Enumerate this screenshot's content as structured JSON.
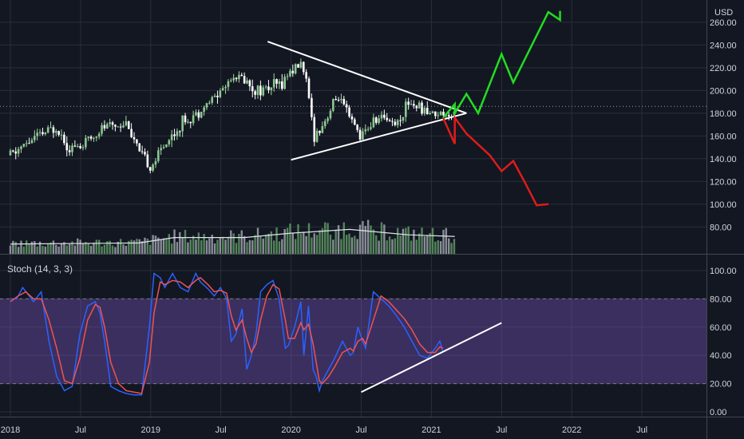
{
  "chart_data": [
    {
      "type": "candlestick",
      "currency_label": "USD",
      "y_ticks": [
        80,
        100,
        120,
        140,
        160,
        180,
        200,
        220,
        240,
        260
      ],
      "y_tick_labels": [
        "80.00",
        "100.00",
        "120.00",
        "140.00",
        "160.00",
        "180.00",
        "200.00",
        "220.00",
        "240.00",
        "260.00"
      ],
      "ylim": [
        70,
        280
      ],
      "last_price": 186,
      "x_ticks": [
        "2018-01",
        "2018-07",
        "2019-01",
        "2019-07",
        "2020-01",
        "2020-07",
        "2021-01",
        "2021-07",
        "2022-01",
        "2022-07"
      ],
      "x_tick_labels": [
        "2018",
        "Jul",
        "2019",
        "Jul",
        "2020",
        "Jul",
        "2021",
        "Jul",
        "2022",
        "Jul"
      ],
      "price_path": [
        [
          "2018-01",
          143
        ],
        [
          "2018-03",
          158
        ],
        [
          "2018-05",
          168
        ],
        [
          "2018-06",
          150
        ],
        [
          "2018-07",
          150
        ],
        [
          "2018-09",
          168
        ],
        [
          "2018-11",
          172
        ],
        [
          "2018-12",
          145
        ],
        [
          "2019-01",
          132
        ],
        [
          "2019-02",
          150
        ],
        [
          "2019-04",
          175
        ],
        [
          "2019-05",
          180
        ],
        [
          "2019-07",
          200
        ],
        [
          "2019-08",
          213
        ],
        [
          "2019-09",
          210
        ],
        [
          "2019-10",
          200
        ],
        [
          "2019-12",
          205
        ],
        [
          "2020-01",
          218
        ],
        [
          "2020-02",
          225
        ],
        [
          "2020-03",
          160
        ],
        [
          "2020-04",
          175
        ],
        [
          "2020-05",
          195
        ],
        [
          "2020-06",
          175
        ],
        [
          "2020-07",
          160
        ],
        [
          "2020-08",
          172
        ],
        [
          "2020-09",
          178
        ],
        [
          "2020-10",
          170
        ],
        [
          "2020-11",
          190
        ],
        [
          "2020-12",
          185
        ],
        [
          "2021-01",
          180
        ],
        [
          "2021-03",
          180
        ]
      ],
      "volume": {
        "ma_path": [
          [
            "2018-01",
            0.18
          ],
          [
            "2018-12",
            0.2
          ],
          [
            "2019-03",
            0.3
          ],
          [
            "2019-09",
            0.3
          ],
          [
            "2020-01",
            0.38
          ],
          [
            "2020-06",
            0.45
          ],
          [
            "2020-11",
            0.35
          ],
          [
            "2021-03",
            0.32
          ]
        ]
      },
      "annotations": {
        "triangle_upper": [
          [
            "2019-11",
            243
          ],
          [
            "2021-04",
            180
          ]
        ],
        "triangle_lower": [
          [
            "2020-01",
            139
          ],
          [
            "2021-04",
            180
          ]
        ],
        "bullish_projection": [
          [
            "2021-02",
            176
          ],
          [
            "2021-03",
            188
          ],
          [
            "2021-03",
            180
          ],
          [
            "2021-04",
            197
          ],
          [
            "2021-05",
            180
          ],
          [
            "2021-07",
            232
          ],
          [
            "2021-08",
            207
          ],
          [
            "2021-11",
            269
          ],
          [
            "2021-12",
            262
          ],
          [
            "2021-12",
            270
          ]
        ],
        "bearish_projection": [
          [
            "2021-02",
            176
          ],
          [
            "2021-03",
            153
          ],
          [
            "2021-03",
            176
          ],
          [
            "2021-04",
            162
          ],
          [
            "2021-06",
            143
          ],
          [
            "2021-07",
            129
          ],
          [
            "2021-08",
            138
          ],
          [
            "2021-09",
            119
          ],
          [
            "2021-10",
            99
          ],
          [
            "2021-11",
            100
          ]
        ]
      }
    },
    {
      "type": "line",
      "title": "Stoch (14, 3, 3)",
      "ylim": [
        -5,
        105
      ],
      "y_ticks": [
        0,
        20,
        40,
        60,
        80,
        100
      ],
      "y_tick_labels": [
        "0.00",
        "20.00",
        "40.00",
        "60.00",
        "80.00",
        "100.00"
      ],
      "band": [
        20,
        80
      ],
      "series": [
        {
          "color": "#2962ff",
          "values": [
            [
              0,
              80
            ],
            [
              0.4,
              80
            ],
            [
              0.8,
              88
            ],
            [
              1.5,
              78
            ],
            [
              2.0,
              85
            ],
            [
              2.5,
              50
            ],
            [
              3.0,
              25
            ],
            [
              3.5,
              15
            ],
            [
              4.0,
              18
            ],
            [
              4.5,
              55
            ],
            [
              5.0,
              75
            ],
            [
              5.5,
              78
            ],
            [
              5.8,
              70
            ],
            [
              6.1,
              50
            ],
            [
              6.5,
              18
            ],
            [
              7.0,
              15
            ],
            [
              7.5,
              13
            ],
            [
              8.0,
              12
            ],
            [
              8.5,
              12
            ],
            [
              9.0,
              60
            ],
            [
              9.3,
              98
            ],
            [
              9.7,
              95
            ],
            [
              10.0,
              88
            ],
            [
              10.5,
              98
            ],
            [
              11.0,
              88
            ],
            [
              11.5,
              85
            ],
            [
              12.0,
              98
            ],
            [
              12.3,
              92
            ],
            [
              12.8,
              87
            ],
            [
              13.2,
              82
            ],
            [
              13.6,
              88
            ],
            [
              14.0,
              80
            ],
            [
              14.3,
              50
            ],
            [
              14.6,
              55
            ],
            [
              15.0,
              73
            ],
            [
              15.3,
              30
            ],
            [
              15.6,
              40
            ],
            [
              15.9,
              55
            ],
            [
              16.2,
              85
            ],
            [
              16.6,
              90
            ],
            [
              17.0,
              93
            ],
            [
              17.4,
              80
            ],
            [
              17.8,
              45
            ],
            [
              18.0,
              47
            ],
            [
              18.4,
              60
            ],
            [
              18.8,
              78
            ],
            [
              19.0,
              40
            ],
            [
              19.3,
              75
            ],
            [
              19.6,
              30
            ],
            [
              19.8,
              25
            ],
            [
              20.0,
              15
            ],
            [
              20.2,
              22
            ],
            [
              20.6,
              30
            ],
            [
              21.0,
              38
            ],
            [
              21.5,
              50
            ],
            [
              22.0,
              40
            ],
            [
              22.2,
              42
            ],
            [
              22.5,
              60
            ],
            [
              22.8,
              50
            ],
            [
              23.0,
              45
            ],
            [
              23.5,
              85
            ],
            [
              24.0,
              80
            ],
            [
              24.5,
              75
            ],
            [
              25.0,
              68
            ],
            [
              25.5,
              60
            ],
            [
              26.0,
              50
            ],
            [
              26.5,
              40
            ],
            [
              27.0,
              38
            ],
            [
              27.5,
              45
            ],
            [
              27.8,
              50
            ],
            [
              28.0,
              43
            ]
          ]
        },
        {
          "color": "#ef5350",
          "values": [
            [
              0,
              78
            ],
            [
              0.5,
              82
            ],
            [
              1.0,
              85
            ],
            [
              1.5,
              80
            ],
            [
              2.0,
              80
            ],
            [
              2.5,
              65
            ],
            [
              3.0,
              45
            ],
            [
              3.5,
              22
            ],
            [
              4.0,
              20
            ],
            [
              4.5,
              38
            ],
            [
              5.0,
              65
            ],
            [
              5.5,
              76
            ],
            [
              5.8,
              74
            ],
            [
              6.1,
              60
            ],
            [
              6.5,
              35
            ],
            [
              7.0,
              20
            ],
            [
              7.5,
              15
            ],
            [
              8.0,
              14
            ],
            [
              8.5,
              13
            ],
            [
              9.0,
              35
            ],
            [
              9.3,
              70
            ],
            [
              9.7,
              92
            ],
            [
              10.0,
              90
            ],
            [
              10.5,
              93
            ],
            [
              11.0,
              92
            ],
            [
              11.5,
              88
            ],
            [
              12.0,
              93
            ],
            [
              12.3,
              95
            ],
            [
              12.8,
              90
            ],
            [
              13.2,
              85
            ],
            [
              13.6,
              86
            ],
            [
              14.0,
              84
            ],
            [
              14.3,
              68
            ],
            [
              14.6,
              58
            ],
            [
              15.0,
              65
            ],
            [
              15.3,
              52
            ],
            [
              15.6,
              42
            ],
            [
              15.9,
              48
            ],
            [
              16.2,
              65
            ],
            [
              16.6,
              82
            ],
            [
              17.0,
              90
            ],
            [
              17.4,
              87
            ],
            [
              17.8,
              65
            ],
            [
              18.0,
              52
            ],
            [
              18.4,
              52
            ],
            [
              18.8,
              63
            ],
            [
              19.0,
              58
            ],
            [
              19.3,
              62
            ],
            [
              19.6,
              48
            ],
            [
              19.8,
              35
            ],
            [
              20.0,
              22
            ],
            [
              20.2,
              20
            ],
            [
              20.6,
              25
            ],
            [
              21.0,
              32
            ],
            [
              21.5,
              42
            ],
            [
              22.0,
              45
            ],
            [
              22.2,
              43
            ],
            [
              22.5,
              50
            ],
            [
              22.8,
              52
            ],
            [
              23.0,
              48
            ],
            [
              23.5,
              65
            ],
            [
              24.0,
              82
            ],
            [
              24.5,
              78
            ],
            [
              25.0,
              72
            ],
            [
              25.5,
              66
            ],
            [
              26.0,
              58
            ],
            [
              26.5,
              48
            ],
            [
              27.0,
              42
            ],
            [
              27.5,
              42
            ],
            [
              27.8,
              46
            ],
            [
              28.0,
              45
            ]
          ]
        }
      ],
      "annotations": {
        "trendline": [
          [
            "2020-07",
            14
          ],
          [
            "2021-07",
            63
          ]
        ]
      }
    }
  ]
}
